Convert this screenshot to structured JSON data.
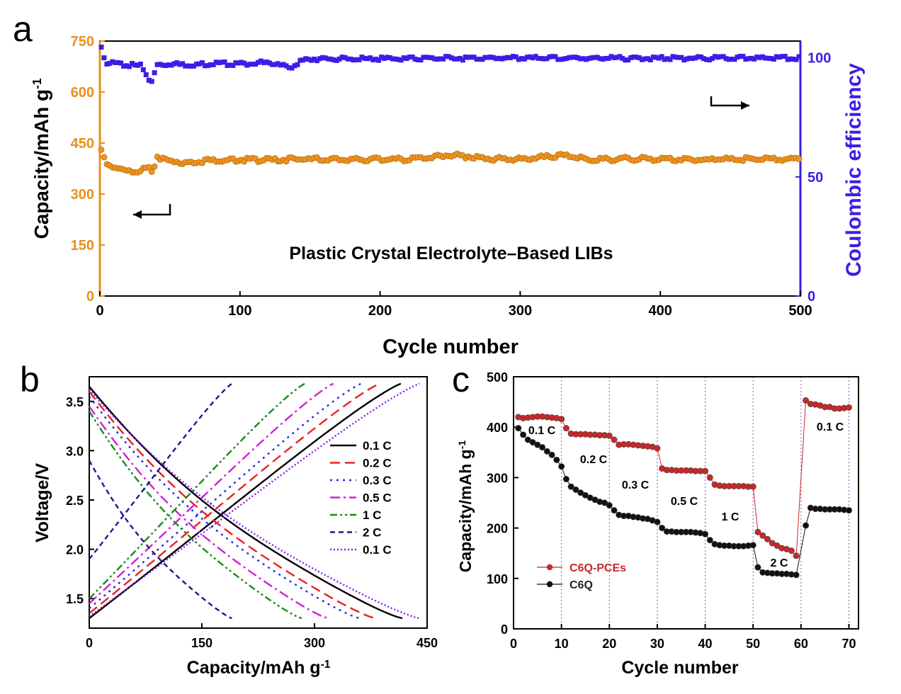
{
  "chart_data": [
    {
      "panel": "a",
      "type": "scatter",
      "title": "Plastic Crystal Electrolyte–Based LIBs",
      "xlabel": "Cycle number",
      "ylabel_left": "Capacity/mAh g",
      "ylabel_left_sup": "-1",
      "ylabel_right": "Coulombic efficiency",
      "xlim": [
        0,
        500
      ],
      "xticks": [
        0,
        100,
        200,
        300,
        400,
        500
      ],
      "ylim_left": [
        0,
        750
      ],
      "yticks_left": [
        0,
        150,
        300,
        450,
        600,
        750
      ],
      "ylim_right": [
        0,
        107
      ],
      "yticks_right": [
        0,
        50,
        100
      ],
      "colors": {
        "capacity": "#f0961e",
        "efficiency": "#3a1ee8",
        "left_axis": "#e8901a",
        "right_axis": "#3a1ee8"
      },
      "series": [
        {
          "name": "Capacity",
          "axis": "left",
          "marker": "circle",
          "x": [
            1,
            5,
            10,
            15,
            20,
            25,
            30,
            35,
            38,
            40,
            45,
            50,
            60,
            70,
            80,
            90,
            100,
            120,
            140,
            160,
            180,
            200,
            220,
            250,
            280,
            300,
            330,
            350,
            380,
            400,
            430,
            450,
            480,
            500
          ],
          "y": [
            425,
            385,
            380,
            372,
            366,
            368,
            372,
            376,
            352,
            412,
            402,
            398,
            393,
            396,
            400,
            399,
            401,
            400,
            403,
            402,
            401,
            403,
            402,
            415,
            404,
            402,
            413,
            401,
            404,
            402,
            401,
            403,
            402,
            403
          ]
        },
        {
          "name": "Coulombic efficiency",
          "axis": "right",
          "marker": "square",
          "x": [
            1,
            3,
            5,
            10,
            20,
            30,
            35,
            38,
            40,
            45,
            50,
            60,
            80,
            100,
            120,
            135,
            140,
            145,
            150,
            170,
            200,
            250,
            300,
            350,
            400,
            450,
            500
          ],
          "y": [
            105,
            100,
            98,
            97.5,
            97,
            96.5,
            91,
            90,
            97,
            97,
            97.5,
            97,
            97.5,
            97.5,
            98,
            96,
            97,
            99,
            99.5,
            99.5,
            99.5,
            99.8,
            99.9,
            99.8,
            99.8,
            99.9,
            99.8
          ]
        }
      ],
      "annotations": {
        "left_arrow": "capacity axis",
        "right_arrow": "efficiency axis"
      }
    },
    {
      "panel": "b",
      "type": "line",
      "xlabel": "Capacity/mAh g",
      "xlabel_sup": "-1",
      "ylabel": "Voltage/V",
      "xlim": [
        0,
        450
      ],
      "xticks": [
        0,
        150,
        300,
        450
      ],
      "ylim": [
        1.2,
        3.75
      ],
      "yticks": [
        1.5,
        2.0,
        2.5,
        3.0,
        3.5
      ],
      "legend": [
        "0.1 C",
        "0.2 C",
        "0.3 C",
        "0.5 C",
        "1 C",
        "2 C",
        "0.1 C"
      ],
      "series": [
        {
          "name": "0.1 C",
          "color": "#000000",
          "dash": "solid",
          "discharge_capacity": 417,
          "charge_capacity": 415,
          "discharge_start_v": 3.65,
          "charge_start_v": 1.3
        },
        {
          "name": "0.2 C",
          "color": "#e8231e",
          "dash": "long-dash",
          "discharge_capacity": 381,
          "charge_capacity": 387,
          "discharge_start_v": 3.6,
          "charge_start_v": 1.35
        },
        {
          "name": "0.3 C",
          "color": "#2a2ae0",
          "dash": "dot",
          "discharge_capacity": 360,
          "charge_capacity": 362,
          "discharge_start_v": 3.55,
          "charge_start_v": 1.4
        },
        {
          "name": "0.5 C",
          "color": "#d21ed8",
          "dash": "dash-dot",
          "discharge_capacity": 318,
          "charge_capacity": 325,
          "discharge_start_v": 3.45,
          "charge_start_v": 1.45
        },
        {
          "name": "1 C",
          "color": "#1a8a1a",
          "dash": "dash-dot-dot",
          "discharge_capacity": 283,
          "charge_capacity": 287,
          "discharge_start_v": 3.4,
          "charge_start_v": 1.5
        },
        {
          "name": "2 C",
          "color": "#1a1a8a",
          "dash": "short-dash",
          "discharge_capacity": 190,
          "charge_capacity": 190,
          "discharge_start_v": 2.9,
          "charge_start_v": 1.9
        },
        {
          "name": "0.1 C",
          "color": "#8a1ae8",
          "dash": "fine-dot",
          "discharge_capacity": 440,
          "charge_capacity": 440,
          "discharge_start_v": 3.62,
          "charge_start_v": 1.32
        }
      ]
    },
    {
      "panel": "c",
      "type": "scatter",
      "xlabel": "Cycle number",
      "ylabel": "Capacity/mAh g",
      "ylabel_sup": "-1",
      "xlim": [
        0,
        72
      ],
      "xticks": [
        0,
        10,
        20,
        30,
        40,
        50,
        60,
        70
      ],
      "ylim": [
        0,
        500
      ],
      "yticks": [
        0,
        100,
        200,
        300,
        400,
        500
      ],
      "vlines": [
        10,
        20,
        30,
        40,
        50,
        60,
        70
      ],
      "legend": [
        "C6Q-PCEs",
        "C6Q"
      ],
      "rate_labels": [
        "0.1 C",
        "0.2 C",
        "0.3 C",
        "0.5 C",
        "1 C",
        "2 C",
        "0.1 C"
      ],
      "series": [
        {
          "name": "C6Q-PCEs",
          "color": "#c82828",
          "x": [
            1,
            2,
            3,
            4,
            5,
            6,
            7,
            8,
            9,
            10,
            11,
            12,
            13,
            14,
            15,
            16,
            17,
            18,
            19,
            20,
            21,
            22,
            23,
            24,
            25,
            26,
            27,
            28,
            29,
            30,
            31,
            32,
            33,
            34,
            35,
            36,
            37,
            38,
            39,
            40,
            41,
            42,
            43,
            44,
            45,
            46,
            47,
            48,
            49,
            50,
            51,
            52,
            53,
            54,
            55,
            56,
            57,
            58,
            59,
            61,
            62,
            63,
            64,
            65,
            66,
            67,
            68,
            69,
            70
          ],
          "y": [
            420,
            418,
            419,
            420,
            421,
            421,
            420,
            419,
            418,
            416,
            398,
            387,
            386,
            386,
            386,
            385,
            385,
            384,
            384,
            383,
            375,
            365,
            366,
            366,
            365,
            364,
            363,
            362,
            361,
            358,
            318,
            315,
            315,
            314,
            314,
            314,
            314,
            313,
            313,
            313,
            300,
            286,
            284,
            283,
            283,
            283,
            283,
            283,
            282,
            282,
            192,
            185,
            178,
            170,
            165,
            160,
            158,
            155,
            145,
            453,
            446,
            445,
            443,
            440,
            440,
            437,
            437,
            438,
            439
          ]
        },
        {
          "name": "C6Q",
          "color": "#111111",
          "x": [
            1,
            2,
            3,
            4,
            5,
            6,
            7,
            8,
            9,
            10,
            11,
            12,
            13,
            14,
            15,
            16,
            17,
            18,
            19,
            20,
            21,
            22,
            23,
            24,
            25,
            26,
            27,
            28,
            29,
            30,
            31,
            32,
            33,
            34,
            35,
            36,
            37,
            38,
            39,
            40,
            41,
            42,
            43,
            44,
            45,
            46,
            47,
            48,
            49,
            50,
            51,
            52,
            53,
            54,
            55,
            56,
            57,
            58,
            59,
            61,
            62,
            63,
            64,
            65,
            66,
            67,
            68,
            69,
            70
          ],
          "y": [
            398,
            385,
            375,
            370,
            365,
            360,
            352,
            345,
            335,
            322,
            297,
            282,
            276,
            270,
            265,
            260,
            256,
            252,
            250,
            245,
            235,
            226,
            224,
            224,
            222,
            221,
            219,
            218,
            215,
            212,
            200,
            193,
            193,
            192,
            192,
            192,
            192,
            191,
            190,
            188,
            176,
            168,
            166,
            165,
            165,
            164,
            164,
            164,
            165,
            166,
            122,
            112,
            111,
            110,
            110,
            109,
            109,
            108,
            107,
            205,
            240,
            238,
            238,
            237,
            237,
            237,
            237,
            236,
            235
          ]
        }
      ]
    }
  ],
  "panel_labels": {
    "a": "a",
    "b": "b",
    "c": "c"
  }
}
